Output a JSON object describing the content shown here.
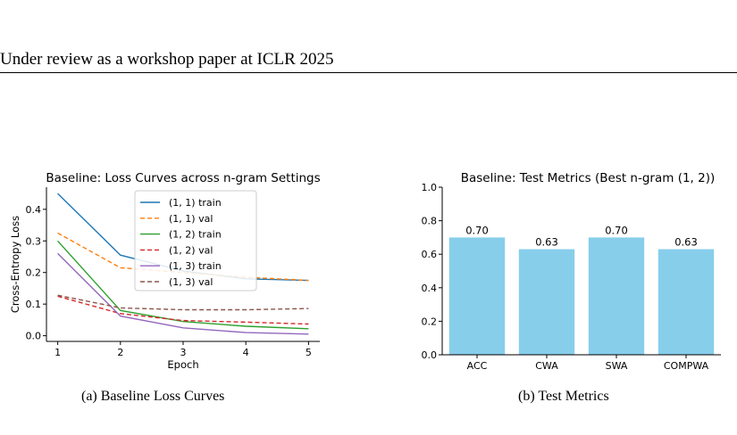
{
  "page": {
    "header": "Under review as a workshop paper at ICLR 2025",
    "captions": [
      "(a)  Baseline Loss Curves",
      "(b)  Test Metrics"
    ]
  },
  "chart_data": [
    {
      "type": "line",
      "title": "Baseline: Loss Curves across n-gram Settings",
      "xlabel": "Epoch",
      "ylabel": "Cross-Entropy Loss",
      "x": [
        1,
        2,
        3,
        4,
        5
      ],
      "xticks": [
        "1",
        "2",
        "3",
        "4",
        "5"
      ],
      "yticks": [
        "0.0",
        "0.1",
        "0.2",
        "0.3",
        "0.4"
      ],
      "xlim": [
        0.82,
        5.18
      ],
      "ylim": [
        -0.018,
        0.47
      ],
      "grid": false,
      "legend": "top-center",
      "series": [
        {
          "name": "(1, 1) train",
          "color": "#1f77b4",
          "dash": false,
          "values": [
            0.45,
            0.255,
            0.205,
            0.18,
            0.175
          ]
        },
        {
          "name": "(1, 1) val",
          "color": "#ff7f0e",
          "dash": true,
          "values": [
            0.325,
            0.215,
            0.2,
            0.185,
            0.175
          ]
        },
        {
          "name": "(1, 2) train",
          "color": "#2ca02c",
          "dash": false,
          "values": [
            0.3,
            0.08,
            0.045,
            0.03,
            0.022
          ]
        },
        {
          "name": "(1, 2) val",
          "color": "#d62728",
          "dash": true,
          "values": [
            0.125,
            0.07,
            0.048,
            0.043,
            0.037
          ]
        },
        {
          "name": "(1, 3) train",
          "color": "#9467bd",
          "dash": false,
          "values": [
            0.26,
            0.062,
            0.025,
            0.01,
            0.005
          ]
        },
        {
          "name": "(1, 3) val",
          "color": "#8c564b",
          "dash": true,
          "values": [
            0.128,
            0.088,
            0.082,
            0.082,
            0.086
          ]
        }
      ]
    },
    {
      "type": "bar",
      "title": "Baseline: Test Metrics (Best n-gram (1, 2))",
      "categories": [
        "ACC",
        "CWA",
        "SWA",
        "COMPWA"
      ],
      "values": [
        0.7,
        0.63,
        0.7,
        0.63
      ],
      "value_labels": [
        "0.70",
        "0.63",
        "0.70",
        "0.63"
      ],
      "yticks": [
        "0.0",
        "0.2",
        "0.4",
        "0.6",
        "0.8",
        "1.0"
      ],
      "ylim": [
        0,
        1.0
      ],
      "bar_color": "#87ceeb",
      "grid": false
    }
  ]
}
